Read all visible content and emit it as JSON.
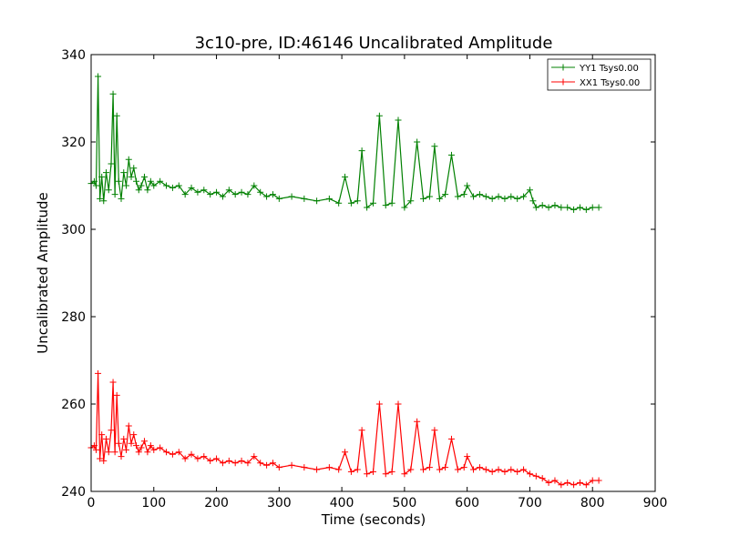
{
  "chart_data": {
    "type": "line",
    "title": "3c10-pre, ID:46146 Uncalibrated Amplitude",
    "xlabel": "Time (seconds)",
    "ylabel": "Uncalibrated Amplitude",
    "xlim": [
      0,
      900
    ],
    "ylim": [
      240,
      340
    ],
    "xticks": [
      0,
      100,
      200,
      300,
      400,
      500,
      600,
      700,
      800,
      900
    ],
    "yticks": [
      240,
      260,
      280,
      300,
      320,
      340
    ],
    "grid": false,
    "legend_position": "top-right",
    "marker": "+",
    "series": [
      {
        "name": "YY1 Tsys0.00",
        "color": "#008000",
        "x": [
          0,
          5,
          8,
          11,
          14,
          17,
          20,
          24,
          28,
          32,
          35,
          38,
          41,
          44,
          48,
          52,
          56,
          60,
          64,
          68,
          72,
          76,
          80,
          85,
          90,
          95,
          100,
          110,
          120,
          130,
          140,
          150,
          160,
          170,
          180,
          190,
          200,
          210,
          220,
          230,
          240,
          250,
          260,
          270,
          280,
          290,
          300,
          320,
          340,
          360,
          380,
          395,
          405,
          415,
          425,
          432,
          440,
          450,
          460,
          470,
          480,
          490,
          500,
          510,
          520,
          530,
          540,
          548,
          556,
          565,
          575,
          585,
          595,
          600,
          610,
          620,
          630,
          640,
          650,
          660,
          670,
          680,
          690,
          700,
          705,
          710,
          720,
          730,
          740,
          750,
          760,
          770,
          780,
          790,
          800,
          810
        ],
        "y": [
          310.5,
          311,
          310,
          335,
          307,
          312,
          306.5,
          313,
          309,
          315,
          331,
          308,
          326,
          311,
          307,
          313,
          310,
          316,
          312,
          314,
          311,
          309,
          310,
          312,
          309,
          311,
          310,
          311,
          310,
          309.5,
          310,
          308,
          309.5,
          308.5,
          309,
          308,
          308.5,
          307.5,
          309,
          308,
          308.5,
          308,
          310,
          308.5,
          307.5,
          308,
          307,
          307.5,
          307,
          306.5,
          307,
          306,
          312,
          306,
          306.5,
          318,
          305,
          306,
          326,
          305.5,
          306,
          325,
          305,
          306.5,
          320,
          307,
          307.5,
          319,
          307,
          308,
          317,
          307.5,
          308,
          310,
          307.5,
          308,
          307.5,
          307,
          307.5,
          307,
          307.5,
          307,
          307.5,
          309,
          306.5,
          305,
          305.5,
          305,
          305.5,
          305,
          305,
          304.5,
          305,
          304.5,
          305,
          305
        ]
      },
      {
        "name": "XX1 Tsys0.00",
        "color": "#ff0000",
        "x": [
          0,
          5,
          8,
          11,
          14,
          17,
          20,
          24,
          28,
          32,
          35,
          38,
          41,
          44,
          48,
          52,
          56,
          60,
          64,
          68,
          72,
          76,
          80,
          85,
          90,
          95,
          100,
          110,
          120,
          130,
          140,
          150,
          160,
          170,
          180,
          190,
          200,
          210,
          220,
          230,
          240,
          250,
          260,
          270,
          280,
          290,
          300,
          320,
          340,
          360,
          380,
          395,
          405,
          415,
          425,
          432,
          440,
          450,
          460,
          470,
          480,
          490,
          500,
          510,
          520,
          530,
          540,
          548,
          556,
          565,
          575,
          585,
          595,
          600,
          610,
          620,
          630,
          640,
          650,
          660,
          670,
          680,
          690,
          700,
          710,
          720,
          730,
          740,
          750,
          760,
          770,
          780,
          790,
          800,
          810
        ],
        "y": [
          250,
          250.5,
          249.5,
          267,
          247.5,
          253,
          247,
          252,
          249,
          254,
          265,
          249,
          262,
          251,
          248,
          252,
          249.5,
          255,
          251,
          253,
          250.5,
          249,
          250,
          251.5,
          249,
          250.5,
          249.5,
          250,
          249,
          248.5,
          249,
          247.5,
          248.5,
          247.5,
          248,
          247,
          247.5,
          246.5,
          247,
          246.5,
          247,
          246.5,
          248,
          246.5,
          246,
          246.5,
          245.5,
          246,
          245.5,
          245,
          245.5,
          245,
          249,
          244.5,
          245,
          254,
          244,
          244.5,
          260,
          244,
          244.5,
          260,
          244,
          245,
          256,
          245,
          245.5,
          254,
          245,
          245.5,
          252,
          245,
          245.5,
          248,
          245,
          245.5,
          245,
          244.5,
          245,
          244.5,
          245,
          244.5,
          245,
          244,
          243.5,
          243,
          242,
          242.5,
          241.5,
          242,
          241.5,
          242,
          241.5,
          242.5,
          242.5
        ]
      }
    ]
  }
}
